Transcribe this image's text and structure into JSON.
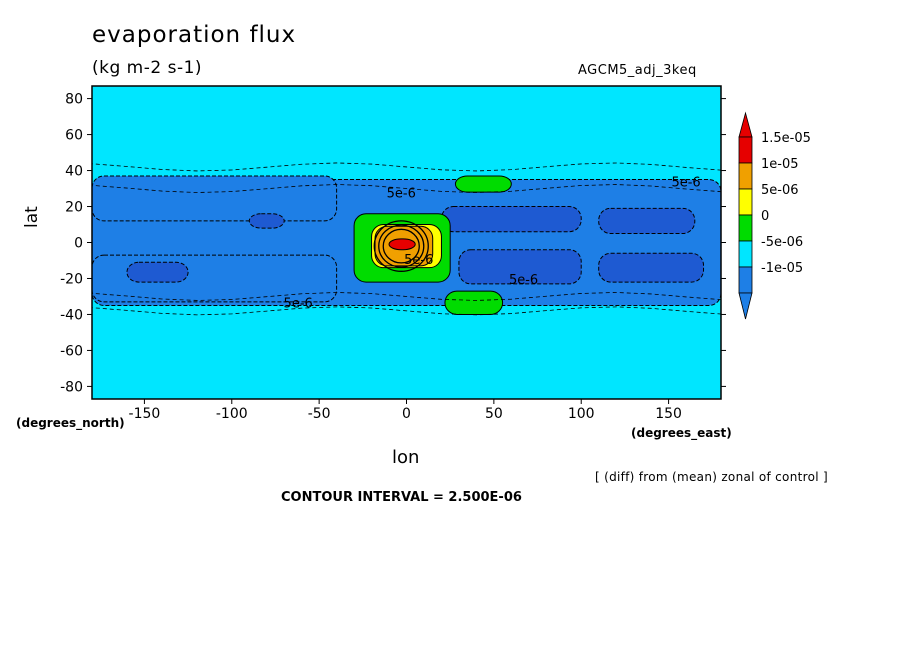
{
  "header": {
    "title": "evaporation flux",
    "units": "(kg m-2 s-1)",
    "run_name": "AGCM5_adj_3keq"
  },
  "footer": {
    "diff_note": "[ (diff) from (mean) zonal of control ]",
    "contour_interval": "CONTOUR INTERVAL = 2.500E-06"
  },
  "chart_data": {
    "type": "heatmap",
    "subtype": "filled-contour map",
    "xlabel": "lon",
    "xunit": "(degrees_east)",
    "ylabel": "lat",
    "yunit": "(degrees_north)",
    "xlim": [
      -180,
      180
    ],
    "ylim": [
      -87,
      87
    ],
    "xticks": [
      -150,
      -100,
      -50,
      0,
      50,
      100,
      150
    ],
    "yticks": [
      -80,
      -60,
      -40,
      -20,
      0,
      20,
      40,
      60,
      80
    ],
    "colorbar": {
      "levels": [
        -1.25e-05,
        -1e-05,
        -5e-06,
        0,
        5e-06,
        1e-05,
        1.5e-05,
        2e-05
      ],
      "tick_labels": [
        "1.5e-05",
        "1e-05",
        "5e-06",
        "0",
        "-5e-06",
        "-1e-05"
      ],
      "colors": [
        "#1e7fe6",
        "#00e6ff",
        "#00dc00",
        "#ffff00",
        "#f0a000",
        "#e60000"
      ],
      "triangle_top_color": "#e60000",
      "triangle_bottom_color": "#1e7fe6"
    },
    "background_color": "#00e6ff",
    "regions": [
      {
        "level": "-1e-05..-5e-06",
        "color": "#1e7fe6",
        "lon": [
          -180,
          180
        ],
        "lat": [
          -35,
          35
        ],
        "note": "broad tropical band, interrupted by positive anomaly near 0E"
      },
      {
        "level": "-1e-05..-5e-06",
        "color": "#1e7fe6",
        "lon": [
          -180,
          -40
        ],
        "lat": [
          12,
          37
        ],
        "note": "northern subtropical band"
      },
      {
        "level": "-1e-05..-5e-06",
        "color": "#1e7fe6",
        "lon": [
          -180,
          -40
        ],
        "lat": [
          -33,
          -7
        ],
        "note": "southern subtropical band"
      },
      {
        "level": "<-1e-05",
        "color": "#1e5ad2",
        "lon": [
          20,
          100
        ],
        "lat": [
          6,
          20
        ],
        "note": "strong negative, north"
      },
      {
        "level": "<-1e-05",
        "color": "#1e5ad2",
        "lon": [
          30,
          100
        ],
        "lat": [
          -23,
          -4
        ],
        "note": "strong negative, south"
      },
      {
        "level": "<-1e-05",
        "color": "#1e5ad2",
        "lon": [
          110,
          165
        ],
        "lat": [
          5,
          19
        ]
      },
      {
        "level": "<-1e-05",
        "color": "#1e5ad2",
        "lon": [
          110,
          170
        ],
        "lat": [
          -22,
          -6
        ]
      },
      {
        "level": "<-1e-05",
        "color": "#1e5ad2",
        "lon": [
          -160,
          -125
        ],
        "lat": [
          -22,
          -11
        ]
      },
      {
        "level": "<-1e-05",
        "color": "#1e5ad2",
        "lon": [
          -90,
          -70
        ],
        "lat": [
          8,
          16
        ]
      },
      {
        "level": "0..5e-06",
        "color": "#00dc00",
        "lon": [
          -30,
          25
        ],
        "lat": [
          -22,
          16
        ],
        "note": "positive anomaly core region"
      },
      {
        "level": "0..5e-06",
        "color": "#00dc00",
        "lon": [
          28,
          60
        ],
        "lat": [
          28,
          37
        ]
      },
      {
        "level": "0..5e-06",
        "color": "#00dc00",
        "lon": [
          22,
          55
        ],
        "lat": [
          -40,
          -27
        ]
      },
      {
        "level": "5e-06..1e-05",
        "color": "#ffff00",
        "lon": [
          -20,
          20
        ],
        "lat": [
          -14,
          10
        ]
      },
      {
        "level": "1e-05..1.5e-05",
        "color": "#f0a000",
        "lon": [
          -18,
          15
        ],
        "lat": [
          -13,
          9
        ]
      },
      {
        "level": ">1.5e-05",
        "color": "#e60000",
        "lon": [
          -10,
          5
        ],
        "lat": [
          -4,
          2
        ]
      }
    ],
    "contour_labels": [
      "5e-6",
      "5e-6",
      "5e-6",
      "5e-6",
      "5e-6"
    ]
  }
}
